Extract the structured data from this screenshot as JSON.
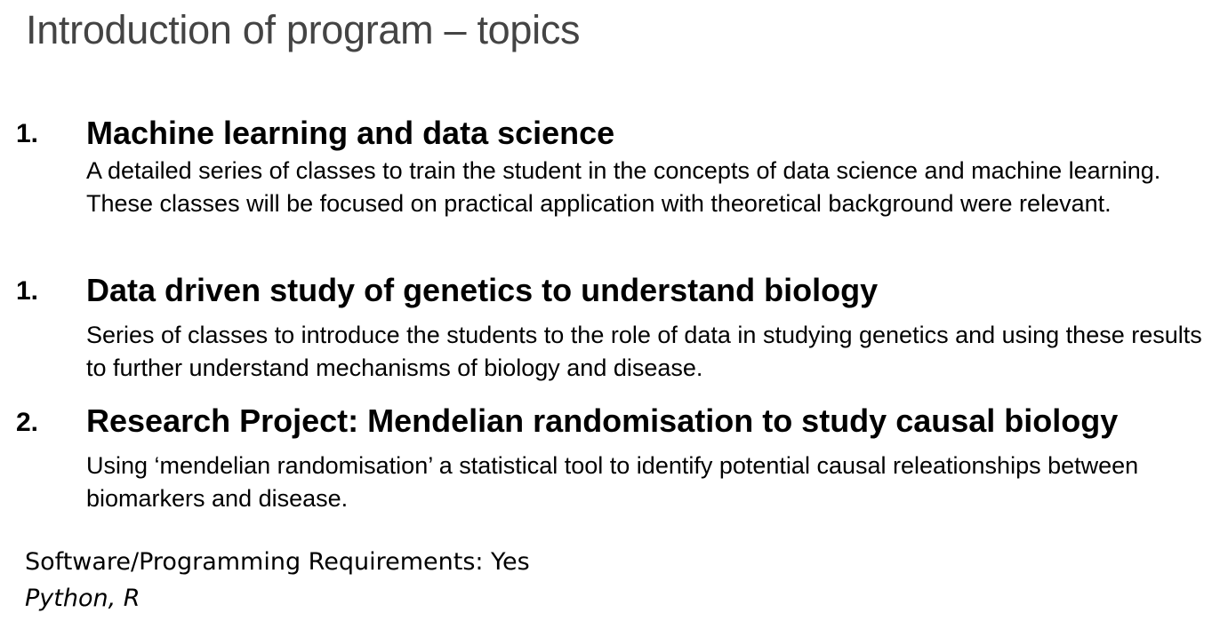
{
  "title": "Introduction of program – topics",
  "topics": [
    {
      "number": "1.",
      "heading": "Machine learning and data science",
      "description": "A detailed series of classes to train the student in the concepts of data science and machine learning. These classes will be focused on practical application with theoretical background were relevant."
    },
    {
      "number": "1.",
      "heading": "Data driven study of genetics to understand biology",
      "description": "Series of classes to introduce the students to the role of data in studying genetics and using these results to further understand mechanisms of biology and disease."
    },
    {
      "number": "2.",
      "heading": "Research Project: Mendelian randomisation to study causal biology",
      "description": "Using ‘mendelian randomisation’ a statistical tool to identify potential causal releationships between biomarkers and disease."
    }
  ],
  "requirements": {
    "label": "Software/Programming Requirements: Yes",
    "languages": "Python, R"
  }
}
